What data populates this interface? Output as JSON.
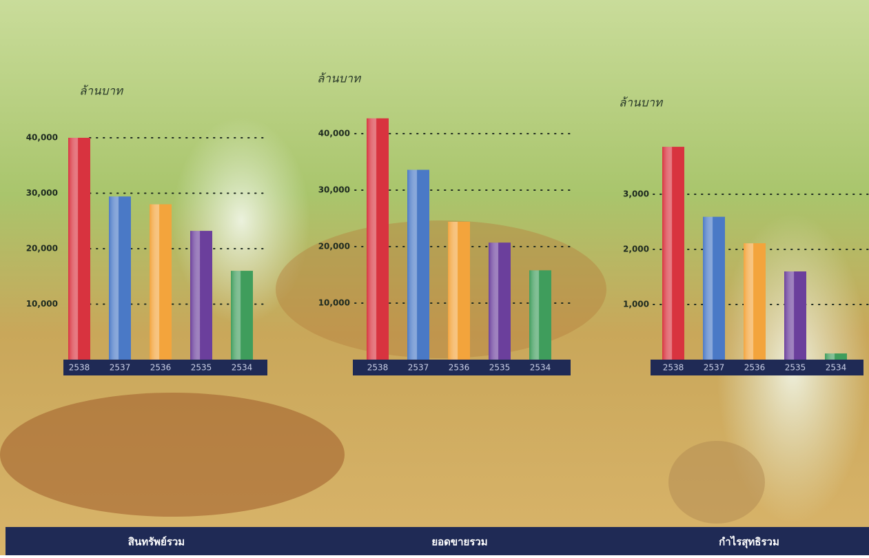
{
  "chart_data": [
    {
      "type": "bar",
      "title": "สินทรัพย์รวม",
      "y_label": "ล้านบาท",
      "categories": [
        "2538",
        "2537",
        "2536",
        "2535",
        "2534"
      ],
      "values": [
        40000,
        29400,
        28000,
        23200,
        16000
      ],
      "colors": [
        "#d8333f",
        "#4a79c6",
        "#f3a43c",
        "#6b3f9c",
        "#3f9d5c"
      ],
      "ylim": [
        0,
        40000
      ],
      "yticks": [
        {
          "value": 10000,
          "label": "10,000"
        },
        {
          "value": 20000,
          "label": "20,000"
        },
        {
          "value": 30000,
          "label": "30,000"
        },
        {
          "value": 40000,
          "label": "40,000"
        }
      ],
      "grid": true
    },
    {
      "type": "bar",
      "title": "ยอดขายรวม",
      "y_label": "ล้านบาท",
      "categories": [
        "2538",
        "2537",
        "2536",
        "2535",
        "2534"
      ],
      "values": [
        42700,
        33600,
        24400,
        20700,
        15800
      ],
      "colors": [
        "#d8333f",
        "#4a79c6",
        "#f3a43c",
        "#6b3f9c",
        "#3f9d5c"
      ],
      "ylim": [
        0,
        45000
      ],
      "yticks": [
        {
          "value": 10000,
          "label": "10,000"
        },
        {
          "value": 20000,
          "label": "20,000"
        },
        {
          "value": 30000,
          "label": "30,000"
        },
        {
          "value": 40000,
          "label": "40,000"
        }
      ],
      "grid": true
    },
    {
      "type": "bar",
      "title": "กำไรสุทธิรวม",
      "y_label": "ล้านบาท",
      "categories": [
        "2538",
        "2537",
        "2536",
        "2535",
        "2534"
      ],
      "values": [
        3860,
        2590,
        2110,
        1600,
        110
      ],
      "colors": [
        "#d8333f",
        "#4a79c6",
        "#f3a43c",
        "#6b3f9c",
        "#3f9d5c"
      ],
      "ylim": [
        0,
        4000
      ],
      "yticks": [
        {
          "value": 1000,
          "label": "1,000"
        },
        {
          "value": 2000,
          "label": "2,000"
        },
        {
          "value": 3000,
          "label": "3,000"
        }
      ],
      "grid": true
    }
  ]
}
